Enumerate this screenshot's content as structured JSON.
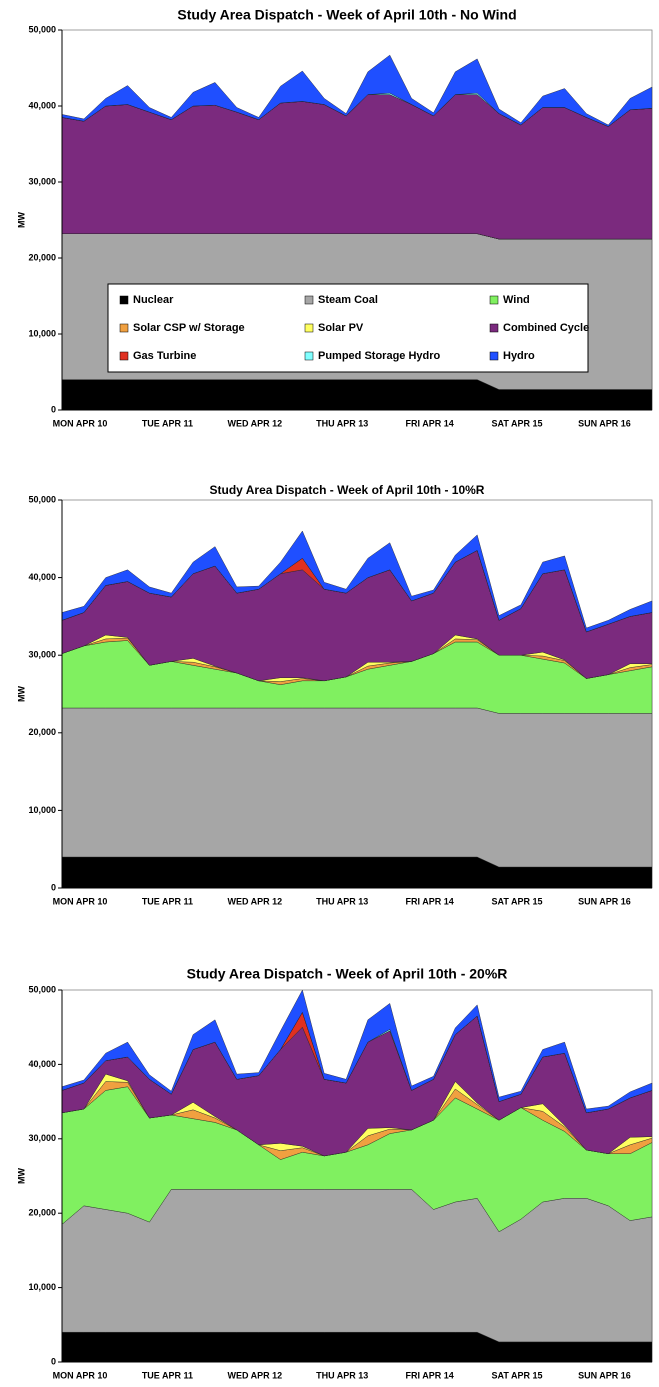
{
  "chart_data": [
    {
      "type": "stacked-area",
      "title": "Study Area Dispatch - Week of April 10th - No Wind",
      "y_label": "MW",
      "legend": "center",
      "categories": [
        "MON APR 10",
        null,
        null,
        null,
        "TUE APR 11",
        null,
        null,
        null,
        "WED APR 12",
        null,
        null,
        null,
        "THU APR 13",
        null,
        null,
        null,
        "FRI APR 14",
        null,
        null,
        null,
        "SAT APR 15",
        null,
        null,
        null,
        "SUN APR 16",
        null,
        null,
        null
      ],
      "ylim": [
        0,
        50000
      ],
      "yticks": [
        0,
        {
          "value": 10000,
          "label": "10,000"
        },
        {
          "value": 20000,
          "label": "20,000"
        },
        {
          "value": 30000,
          "label": "30,000"
        },
        {
          "value": 40000,
          "label": "40,000"
        },
        {
          "value": 50000,
          "label": "50,000"
        }
      ],
      "series": [
        {
          "name": "Nuclear",
          "color": "#000000",
          "values": [
            4000,
            4000,
            4000,
            4000,
            4000,
            4000,
            4000,
            4000,
            4000,
            4000,
            4000,
            4000,
            4000,
            4000,
            4000,
            4000,
            4000,
            4000,
            4000,
            4000,
            2700,
            2700,
            2700,
            2700,
            2700,
            2700,
            2700,
            2700
          ]
        },
        {
          "name": "Steam Coal",
          "color": "#a6a6a6",
          "values": [
            19200,
            19200,
            19200,
            19200,
            19200,
            19200,
            19200,
            19200,
            19200,
            19200,
            19200,
            19200,
            19200,
            19200,
            19200,
            19200,
            19200,
            19200,
            19200,
            19200,
            19800,
            19800,
            19800,
            19800,
            19800,
            19800,
            19800,
            19800
          ]
        },
        {
          "name": "Wind",
          "color": "#80f060",
          "values": [
            0,
            0,
            0,
            0,
            0,
            0,
            0,
            0,
            0,
            0,
            0,
            0,
            0,
            0,
            0,
            0,
            0,
            0,
            0,
            0,
            0,
            0,
            0,
            0,
            0,
            0,
            0,
            0
          ]
        },
        {
          "name": "Solar CSP w/ Storage",
          "color": "#f0a040",
          "values": [
            0,
            0,
            0,
            0,
            0,
            0,
            0,
            0,
            0,
            0,
            0,
            0,
            0,
            0,
            0,
            0,
            0,
            0,
            0,
            0,
            0,
            0,
            0,
            0,
            0,
            0,
            0,
            0
          ]
        },
        {
          "name": "Solar PV",
          "color": "#ffff60",
          "values": [
            0,
            0,
            0,
            0,
            0,
            0,
            0,
            0,
            0,
            0,
            0,
            0,
            0,
            0,
            0,
            0,
            0,
            0,
            0,
            0,
            0,
            0,
            0,
            0,
            0,
            0,
            0,
            0
          ]
        },
        {
          "name": "Combined Cycle",
          "color": "#7b2a7e",
          "values": [
            15300,
            14800,
            16800,
            17000,
            16000,
            15000,
            16800,
            16900,
            16000,
            15000,
            17200,
            17400,
            17000,
            15500,
            18300,
            18300,
            17000,
            15500,
            18300,
            18300,
            16500,
            15000,
            17300,
            17300,
            16000,
            14800,
            17000,
            17200
          ]
        },
        {
          "name": "Gas Turbine",
          "color": "#e03020",
          "values": [
            0,
            0,
            0,
            0,
            0,
            0,
            0,
            0,
            0,
            0,
            0,
            0,
            0,
            0,
            0,
            0,
            0,
            0,
            0,
            0,
            0,
            0,
            0,
            0,
            0,
            0,
            0,
            0
          ]
        },
        {
          "name": "Pumped Storage Hydro",
          "color": "#80ffff",
          "values": [
            0,
            0,
            0,
            0,
            0,
            0,
            0,
            0,
            0,
            0,
            0,
            0,
            0,
            0,
            0,
            200,
            0,
            0,
            0,
            200,
            0,
            0,
            0,
            0,
            0,
            0,
            0,
            0
          ]
        },
        {
          "name": "Hydro",
          "color": "#1f4fff",
          "values": [
            400,
            300,
            1000,
            2500,
            600,
            300,
            1800,
            3000,
            600,
            300,
            2200,
            4000,
            800,
            300,
            3000,
            5000,
            800,
            400,
            3000,
            4500,
            600,
            300,
            1500,
            2500,
            500,
            200,
            1500,
            2800
          ]
        }
      ]
    },
    {
      "type": "stacked-area",
      "title": "Study Area Dispatch - Week of April 10th - 10%R",
      "y_label": "MW",
      "categories": [
        "MON APR 10",
        null,
        null,
        null,
        "TUE APR 11",
        null,
        null,
        null,
        "WED APR 12",
        null,
        null,
        null,
        "THU APR 13",
        null,
        null,
        null,
        "FRI APR 14",
        null,
        null,
        null,
        "SAT APR 15",
        null,
        null,
        null,
        "SUN APR 16",
        null,
        null,
        null
      ],
      "ylim": [
        0,
        50000
      ],
      "yticks": [
        0,
        {
          "value": 10000,
          "label": "10,000"
        },
        {
          "value": 20000,
          "label": "20,000"
        },
        {
          "value": 30000,
          "label": "30,000"
        },
        {
          "value": 40000,
          "label": "40,000"
        },
        {
          "value": 50000,
          "label": "50,000"
        }
      ],
      "series": [
        {
          "color": "#000000",
          "values": [
            4000,
            4000,
            4000,
            4000,
            4000,
            4000,
            4000,
            4000,
            4000,
            4000,
            4000,
            4000,
            4000,
            4000,
            4000,
            4000,
            4000,
            4000,
            4000,
            4000,
            2700,
            2700,
            2700,
            2700,
            2700,
            2700,
            2700,
            2700
          ]
        },
        {
          "color": "#a6a6a6",
          "values": [
            19200,
            19200,
            19200,
            19200,
            19200,
            19200,
            19200,
            19200,
            19200,
            19200,
            19200,
            19200,
            19200,
            19200,
            19200,
            19200,
            19200,
            19200,
            19200,
            19200,
            19800,
            19800,
            19800,
            19800,
            19800,
            19800,
            19800,
            19800
          ]
        },
        {
          "color": "#80f060",
          "values": [
            7000,
            8000,
            8500,
            8700,
            5500,
            6000,
            5500,
            5000,
            4500,
            3500,
            3000,
            3500,
            3500,
            4000,
            5000,
            5500,
            6000,
            7000,
            8500,
            8500,
            7500,
            7500,
            7000,
            6500,
            4500,
            5000,
            5500,
            6000
          ]
        },
        {
          "color": "#f0a040",
          "values": [
            0,
            0,
            400,
            300,
            0,
            0,
            400,
            300,
            0,
            0,
            400,
            300,
            0,
            0,
            400,
            300,
            0,
            0,
            400,
            300,
            0,
            0,
            400,
            300,
            0,
            0,
            400,
            300
          ]
        },
        {
          "color": "#ffff60",
          "values": [
            0,
            0,
            500,
            100,
            0,
            0,
            500,
            100,
            0,
            0,
            500,
            100,
            0,
            0,
            500,
            100,
            0,
            0,
            500,
            100,
            0,
            0,
            500,
            100,
            0,
            0,
            500,
            100
          ]
        },
        {
          "color": "#7b2a7e",
          "values": [
            4300,
            4300,
            6400,
            7200,
            9300,
            8300,
            10900,
            12900,
            10300,
            11800,
            13400,
            13900,
            11800,
            10800,
            10900,
            11900,
            7800,
            7800,
            9400,
            11400,
            4500,
            6000,
            10100,
            11600,
            6000,
            6500,
            6100,
            6600
          ]
        },
        {
          "color": "#e03020",
          "values": [
            0,
            0,
            0,
            0,
            0,
            0,
            0,
            0,
            0,
            0,
            0,
            1500,
            0,
            0,
            0,
            0,
            0,
            0,
            0,
            0,
            0,
            0,
            0,
            0,
            0,
            0,
            0,
            0
          ]
        },
        {
          "color": "#80ffff",
          "values": [
            0,
            0,
            0,
            0,
            0,
            0,
            0,
            0,
            0,
            0,
            0,
            0,
            0,
            0,
            0,
            0,
            0,
            0,
            0,
            0,
            0,
            0,
            0,
            0,
            0,
            0,
            0,
            0
          ]
        },
        {
          "color": "#1f4fff",
          "values": [
            1000,
            800,
            1000,
            1500,
            800,
            500,
            1500,
            2500,
            800,
            400,
            1500,
            3500,
            900,
            500,
            2500,
            3500,
            600,
            400,
            900,
            2000,
            600,
            500,
            1500,
            1800,
            500,
            500,
            900,
            1500
          ]
        }
      ]
    },
    {
      "type": "stacked-area",
      "title": "Study Area Dispatch - Week of April 10th - 20%R",
      "y_label": "MW",
      "categories": [
        "MON APR 10",
        null,
        null,
        null,
        "TUE APR 11",
        null,
        null,
        null,
        "WED APR 12",
        null,
        null,
        null,
        "THU APR 13",
        null,
        null,
        null,
        "FRI APR 14",
        null,
        null,
        null,
        "SAT APR 15",
        null,
        null,
        null,
        "SUN APR 16",
        null,
        null,
        null
      ],
      "ylim": [
        0,
        50000
      ],
      "yticks": [
        0,
        {
          "value": 10000,
          "label": "10,000"
        },
        {
          "value": 20000,
          "label": "20,000"
        },
        {
          "value": 30000,
          "label": "30,000"
        },
        {
          "value": 40000,
          "label": "40,000"
        },
        {
          "value": 50000,
          "label": "50,000"
        }
      ],
      "series": [
        {
          "color": "#000000",
          "values": [
            4000,
            4000,
            4000,
            4000,
            4000,
            4000,
            4000,
            4000,
            4000,
            4000,
            4000,
            4000,
            4000,
            4000,
            4000,
            4000,
            4000,
            4000,
            4000,
            4000,
            2700,
            2700,
            2700,
            2700,
            2700,
            2700,
            2700,
            2700
          ]
        },
        {
          "color": "#a6a6a6",
          "values": [
            14500,
            17000,
            16500,
            16000,
            14800,
            19200,
            19200,
            19200,
            19200,
            19200,
            19200,
            19200,
            19200,
            19200,
            19200,
            19200,
            19200,
            16500,
            17500,
            18000,
            14800,
            16500,
            18800,
            19300,
            19300,
            18300,
            16300,
            16800
          ]
        },
        {
          "color": "#80f060",
          "values": [
            15000,
            13000,
            16000,
            17000,
            14000,
            10000,
            9500,
            9000,
            8000,
            6000,
            4000,
            5000,
            4500,
            5000,
            6000,
            7500,
            8000,
            12000,
            14000,
            12000,
            15000,
            15000,
            11000,
            9000,
            6500,
            7000,
            9000,
            10000
          ]
        },
        {
          "color": "#f0a040",
          "values": [
            0,
            0,
            1200,
            600,
            0,
            0,
            1200,
            600,
            0,
            0,
            1200,
            600,
            0,
            0,
            1200,
            600,
            0,
            0,
            1200,
            600,
            0,
            0,
            1200,
            600,
            0,
            0,
            1200,
            600
          ]
        },
        {
          "color": "#ffff60",
          "values": [
            0,
            0,
            1000,
            200,
            0,
            0,
            1000,
            200,
            0,
            0,
            1000,
            200,
            0,
            0,
            1000,
            200,
            0,
            0,
            1000,
            200,
            0,
            0,
            1000,
            200,
            0,
            0,
            1000,
            200
          ]
        },
        {
          "color": "#7b2a7e",
          "values": [
            3000,
            3500,
            1800,
            3200,
            5200,
            2800,
            7100,
            10000,
            6800,
            9300,
            12600,
            16000,
            10300,
            9300,
            11600,
            13000,
            5300,
            5500,
            6300,
            11700,
            2500,
            1800,
            6300,
            9700,
            5000,
            6000,
            5300,
            6200
          ]
        },
        {
          "color": "#e03020",
          "values": [
            0,
            0,
            0,
            0,
            0,
            0,
            0,
            0,
            0,
            0,
            0,
            2000,
            0,
            0,
            0,
            0,
            0,
            0,
            0,
            0,
            0,
            0,
            0,
            0,
            0,
            0,
            0,
            0
          ]
        },
        {
          "color": "#80ffff",
          "values": [
            0,
            0,
            0,
            0,
            0,
            0,
            0,
            0,
            0,
            0,
            0,
            0,
            0,
            0,
            0,
            200,
            0,
            0,
            0,
            0,
            0,
            0,
            0,
            0,
            0,
            0,
            0,
            0
          ]
        },
        {
          "color": "#1f4fff",
          "values": [
            500,
            400,
            1000,
            2000,
            600,
            400,
            2000,
            3000,
            700,
            400,
            2500,
            3000,
            800,
            500,
            3000,
            3500,
            600,
            400,
            900,
            1500,
            600,
            400,
            1000,
            1500,
            500,
            400,
            800,
            1000
          ]
        }
      ]
    }
  ]
}
